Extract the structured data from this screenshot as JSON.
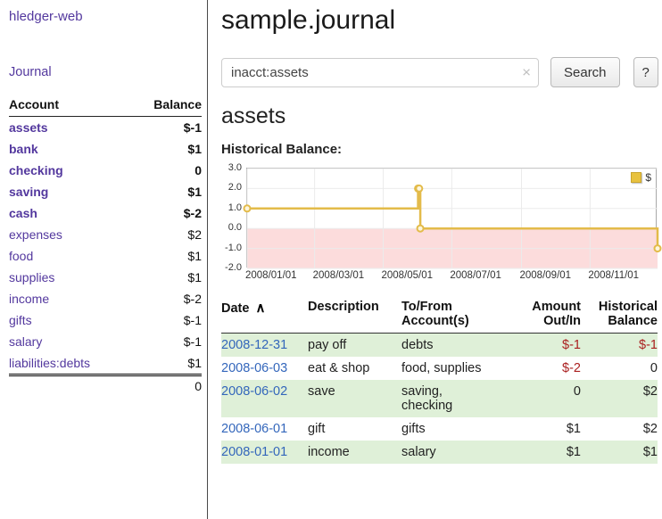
{
  "colors": {
    "brand_purple": "#53389e",
    "negative_strong": "#9e1b1b",
    "negative_soft": "#bb8290",
    "link_blue": "#3366bb",
    "row_stripe_green": "#dff0d8",
    "chart_line_yellow": "#e3bb4a",
    "chart_negative_pink": "#fcdcdc"
  },
  "sidebar": {
    "brand": "hledger-web",
    "journal_link": "Journal",
    "headers": {
      "account": "Account",
      "balance": "Balance"
    },
    "accounts": [
      {
        "name": "assets",
        "balance": "$-1"
      },
      {
        "name": "bank",
        "balance": "$1"
      },
      {
        "name": "checking",
        "balance": "0"
      },
      {
        "name": "saving",
        "balance": "$1"
      },
      {
        "name": "cash",
        "balance": "$-2"
      },
      {
        "name": "expenses",
        "balance": "$2"
      },
      {
        "name": "food",
        "balance": "$1"
      },
      {
        "name": "supplies",
        "balance": "$1"
      },
      {
        "name": "income",
        "balance": "$-2"
      },
      {
        "name": "gifts",
        "balance": "$-1"
      },
      {
        "name": "salary",
        "balance": "$-1"
      },
      {
        "name": "liabilities:debts",
        "balance": "$1"
      }
    ],
    "total": "0"
  },
  "main": {
    "title": "sample.journal",
    "search": {
      "value": "inacct:assets",
      "clear_icon": "×",
      "button_label": "Search",
      "help_label": "?"
    },
    "account_heading": "assets",
    "chart_title": "Historical Balance:"
  },
  "chart_data": {
    "type": "line",
    "step": true,
    "title": "Historical Balance:",
    "legend": "$",
    "legend_position": "top-right",
    "grid": true,
    "x": [
      "2008-01-01",
      "2008-06-01",
      "2008-06-02",
      "2008-06-03",
      "2008-12-31"
    ],
    "values": [
      1,
      2,
      2,
      0,
      -1
    ],
    "series": [
      {
        "name": "$",
        "x": [
          "2008-01-01",
          "2008-06-01",
          "2008-06-02",
          "2008-06-03",
          "2008-12-31"
        ],
        "y": [
          1,
          2,
          2,
          0,
          -1
        ]
      }
    ],
    "ylim": [
      -2,
      3
    ],
    "xlim": [
      "2008-01-01",
      "2008-12-31"
    ],
    "yticks": [
      3.0,
      2.0,
      1.0,
      0.0,
      -1.0,
      -2.0
    ],
    "xticks": [
      {
        "date": "2008-01-01",
        "label": "2008/01/01"
      },
      {
        "date": "2008-03-01",
        "label": "2008/03/01"
      },
      {
        "date": "2008-05-01",
        "label": "2008/05/01"
      },
      {
        "date": "2008-07-01",
        "label": "2008/07/01"
      },
      {
        "date": "2008-09-01",
        "label": "2008/09/01"
      },
      {
        "date": "2008-11-01",
        "label": "2008/11/01"
      }
    ],
    "colors": {
      "line": "#e3bb4a",
      "marker_fill": "#fdf6dc",
      "below_zero": "#fcdcdc",
      "grid": "#ebebeb"
    }
  },
  "register": {
    "headers": {
      "date": "Date",
      "sort_indicator": "∧",
      "description": "Description",
      "account": "To/From Account(s)",
      "amount": "Amount Out/In",
      "balance": "Historical Balance"
    },
    "rows": [
      {
        "date": "2008-12-31",
        "description": "pay off",
        "account": "debts",
        "amount": "$-1",
        "balance": "$-1"
      },
      {
        "date": "2008-06-03",
        "description": "eat & shop",
        "account": "food, supplies",
        "amount": "$-2",
        "balance": "0"
      },
      {
        "date": "2008-06-02",
        "description": "save",
        "account": "saving, checking",
        "amount": "0",
        "balance": "$2"
      },
      {
        "date": "2008-06-01",
        "description": "gift",
        "account": "gifts",
        "amount": "$1",
        "balance": "$2"
      },
      {
        "date": "2008-01-01",
        "description": "income",
        "account": "salary",
        "amount": "$1",
        "balance": "$1"
      }
    ]
  }
}
